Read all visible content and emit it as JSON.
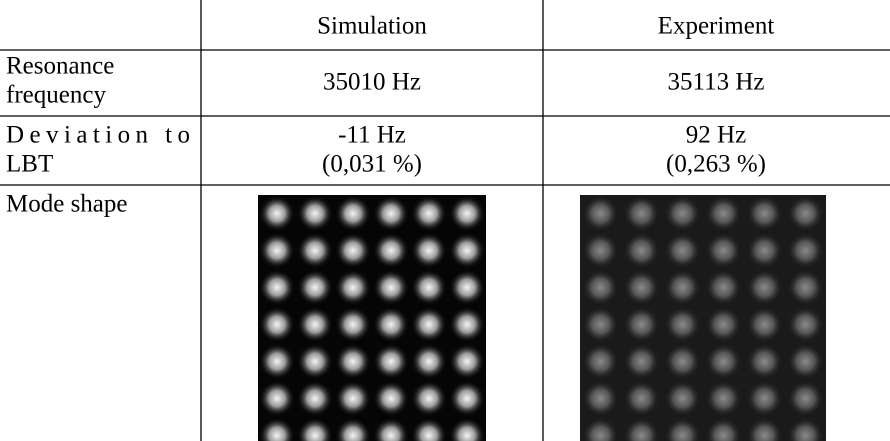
{
  "table": {
    "columns": [
      "Simulation",
      "Experiment"
    ],
    "rows": [
      {
        "label": [
          "Resonance",
          "frequency"
        ],
        "cells": [
          [
            "35010 Hz"
          ],
          [
            "35113 Hz"
          ]
        ]
      },
      {
        "label": [
          "Deviation to",
          "LBT"
        ],
        "cells": [
          [
            "-11 Hz",
            "(0,031 %)"
          ],
          [
            "92 Hz",
            "(0,263 %)"
          ]
        ]
      },
      {
        "label": [
          "Mode shape"
        ]
      }
    ]
  }
}
